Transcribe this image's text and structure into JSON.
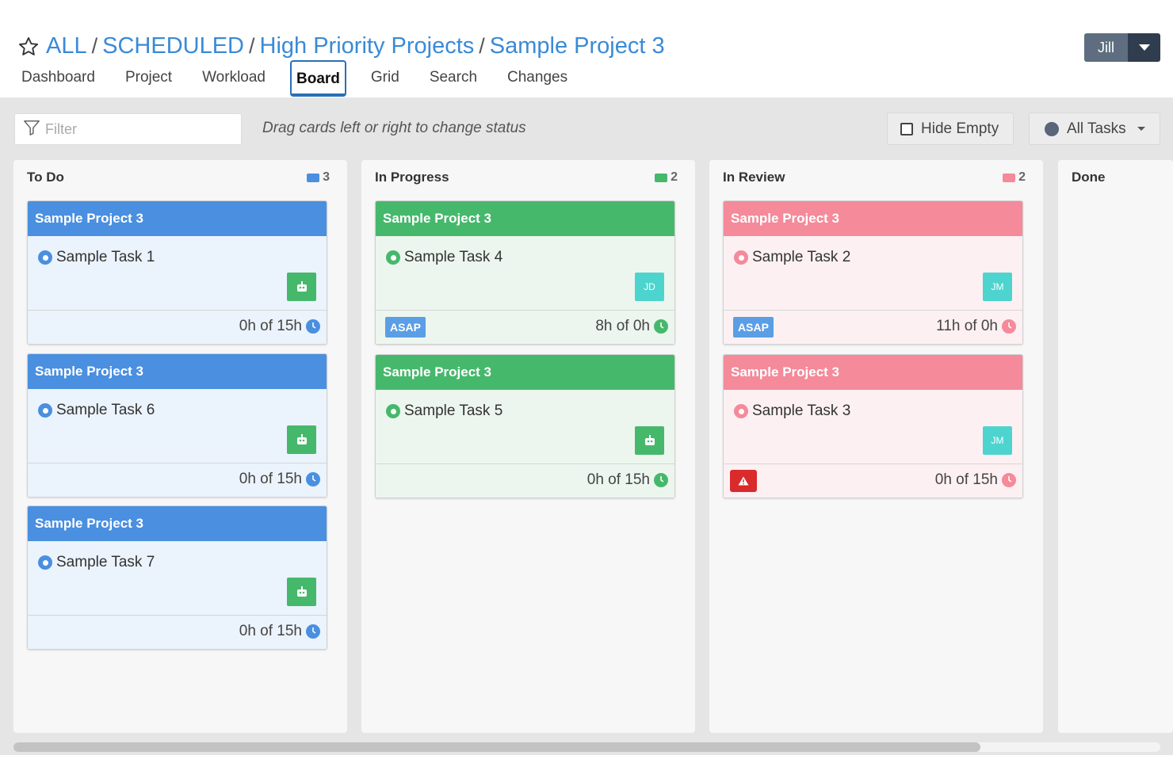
{
  "breadcrumb": {
    "items": [
      "ALL",
      "SCHEDULED",
      "High Priority Projects",
      "Sample Project 3"
    ],
    "separator": "/"
  },
  "tabs": [
    "Dashboard",
    "Project",
    "Workload",
    "Board",
    "Grid",
    "Search",
    "Changes"
  ],
  "active_tab": "Board",
  "user": {
    "name": "Jill"
  },
  "toolbar": {
    "filter_placeholder": "Filter",
    "hint": "Drag cards left or right to change status",
    "hide_empty_label": "Hide Empty",
    "all_tasks_label": "All Tasks"
  },
  "colors": {
    "blue": "#4a8fe0",
    "green": "#46b86c",
    "pink": "#f48a9a",
    "link": "#3a8ad6",
    "warning": "#d92b2b"
  },
  "columns": [
    {
      "title": "To Do",
      "count": "3",
      "cards": [
        {
          "project": "Sample Project 3",
          "task": "Sample Task 1",
          "assignee": "robot-icon",
          "hours": "0h of 15h"
        },
        {
          "project": "Sample Project 3",
          "task": "Sample Task 6",
          "assignee": "robot-icon",
          "hours": "0h of 15h"
        },
        {
          "project": "Sample Project 3",
          "task": "Sample Task 7",
          "assignee": "robot-icon",
          "hours": "0h of 15h"
        }
      ]
    },
    {
      "title": "In Progress",
      "count": "2",
      "cards": [
        {
          "project": "Sample Project 3",
          "task": "Sample Task 4",
          "assignee": "JD",
          "badge": "ASAP",
          "hours": "8h of 0h"
        },
        {
          "project": "Sample Project 3",
          "task": "Sample Task 5",
          "assignee": "robot-icon",
          "hours": "0h of 15h"
        }
      ]
    },
    {
      "title": "In Review",
      "count": "2",
      "cards": [
        {
          "project": "Sample Project 3",
          "task": "Sample Task 2",
          "assignee": "JM",
          "badge": "ASAP",
          "hours": "11h of 0h"
        },
        {
          "project": "Sample Project 3",
          "task": "Sample Task 3",
          "assignee": "JM",
          "badge": "warning-icon",
          "hours": "0h of 15h"
        }
      ]
    },
    {
      "title": "Done"
    }
  ]
}
